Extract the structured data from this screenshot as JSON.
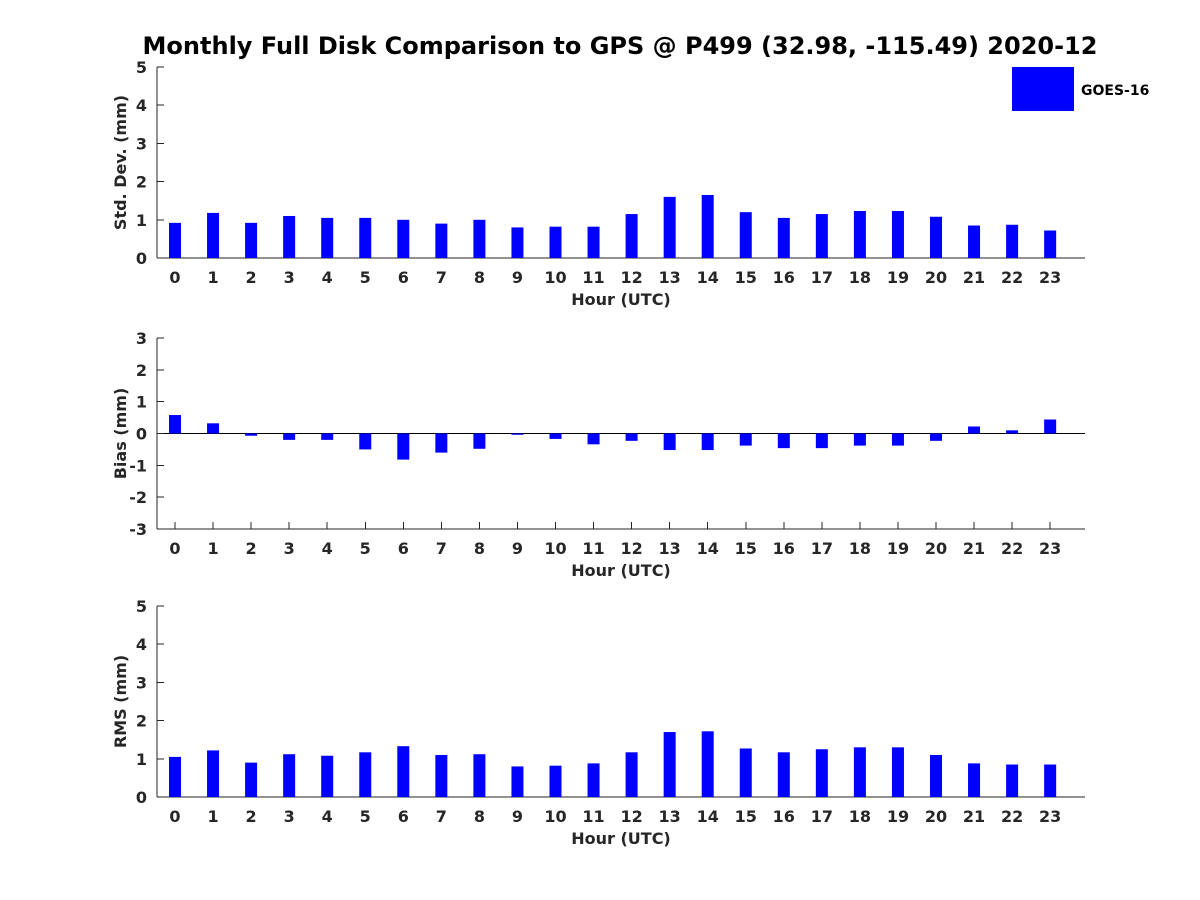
{
  "colors": {
    "bar": "#0000ff",
    "axis": "#262626",
    "background": "#ffffff"
  },
  "legend": {
    "label": "GOES-16",
    "color": "#0000ff",
    "placement": "top-right"
  },
  "title": "Monthly Full Disk Comparison to GPS @ P499 (32.98, -115.49) 2020-12",
  "chart_data": [
    {
      "type": "bar",
      "id": "std",
      "title": "Monthly Full Disk Comparison to GPS @ P499 (32.98, -115.49) 2020-12",
      "xlabel": "Hour (UTC)",
      "ylabel": "Std. Dev. (mm)",
      "ylim": [
        0,
        5
      ],
      "yticks": [
        0,
        1,
        2,
        3,
        4,
        5
      ],
      "categories": [
        "0",
        "1",
        "2",
        "3",
        "4",
        "5",
        "6",
        "7",
        "8",
        "9",
        "10",
        "11",
        "12",
        "13",
        "14",
        "15",
        "16",
        "17",
        "18",
        "19",
        "20",
        "21",
        "22",
        "23"
      ],
      "series": [
        {
          "name": "GOES-16",
          "values": [
            0.92,
            1.18,
            0.92,
            1.1,
            1.05,
            1.05,
            1.0,
            0.9,
            1.0,
            0.8,
            0.82,
            0.82,
            1.15,
            1.6,
            1.65,
            1.2,
            1.05,
            1.15,
            1.23,
            1.23,
            1.08,
            0.85,
            0.87,
            0.72
          ]
        }
      ],
      "grid": false
    },
    {
      "type": "bar",
      "id": "bias",
      "xlabel": "Hour (UTC)",
      "ylabel": "Bias (mm)",
      "ylim": [
        -3,
        3
      ],
      "yticks": [
        -3,
        -2,
        -1,
        0,
        1,
        2,
        3
      ],
      "categories": [
        "0",
        "1",
        "2",
        "3",
        "4",
        "5",
        "6",
        "7",
        "8",
        "9",
        "10",
        "11",
        "12",
        "13",
        "14",
        "15",
        "16",
        "17",
        "18",
        "19",
        "20",
        "21",
        "22",
        "23"
      ],
      "series": [
        {
          "name": "GOES-16",
          "values": [
            0.58,
            0.32,
            -0.07,
            -0.2,
            -0.2,
            -0.5,
            -0.82,
            -0.6,
            -0.48,
            -0.04,
            -0.17,
            -0.34,
            -0.23,
            -0.52,
            -0.52,
            -0.38,
            -0.46,
            -0.46,
            -0.38,
            -0.38,
            -0.23,
            0.22,
            0.1,
            0.44
          ]
        }
      ],
      "grid": false
    },
    {
      "type": "bar",
      "id": "rms",
      "xlabel": "Hour (UTC)",
      "ylabel": "RMS (mm)",
      "ylim": [
        0,
        5
      ],
      "yticks": [
        0,
        1,
        2,
        3,
        4,
        5
      ],
      "categories": [
        "0",
        "1",
        "2",
        "3",
        "4",
        "5",
        "6",
        "7",
        "8",
        "9",
        "10",
        "11",
        "12",
        "13",
        "14",
        "15",
        "16",
        "17",
        "18",
        "19",
        "20",
        "21",
        "22",
        "23"
      ],
      "series": [
        {
          "name": "GOES-16",
          "values": [
            1.05,
            1.22,
            0.9,
            1.12,
            1.08,
            1.17,
            1.33,
            1.1,
            1.12,
            0.8,
            0.82,
            0.88,
            1.17,
            1.7,
            1.72,
            1.27,
            1.17,
            1.25,
            1.3,
            1.3,
            1.1,
            0.88,
            0.85,
            0.85
          ]
        }
      ],
      "grid": false
    }
  ]
}
